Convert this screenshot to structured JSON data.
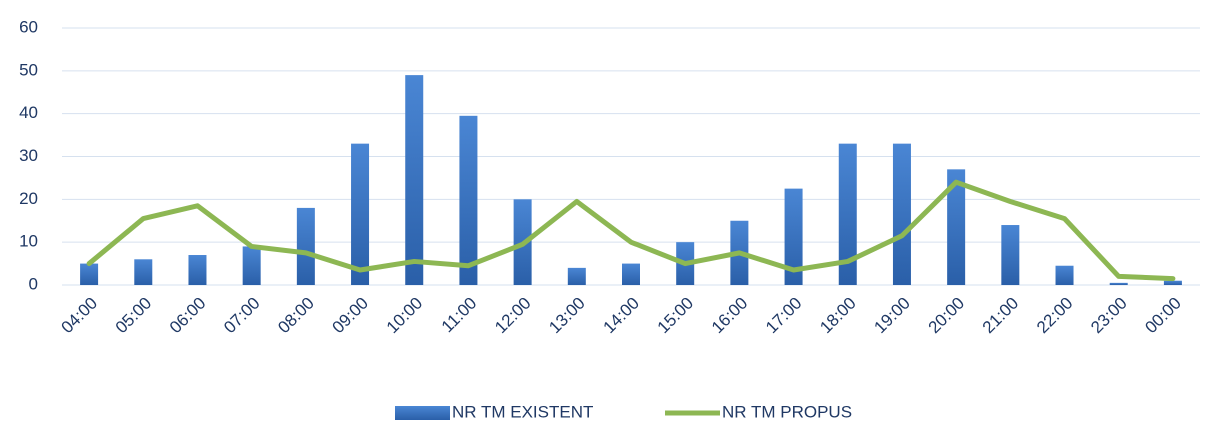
{
  "chart_data": {
    "type": "bar_line",
    "categories": [
      "04:00",
      "05:00",
      "06:00",
      "07:00",
      "08:00",
      "09:00",
      "10:00",
      "11:00",
      "12:00",
      "13:00",
      "14:00",
      "15:00",
      "16:00",
      "17:00",
      "18:00",
      "19:00",
      "20:00",
      "21:00",
      "22:00",
      "23:00",
      "00:00"
    ],
    "series": [
      {
        "name": "NR TM EXISTENT",
        "type": "bar",
        "color": "#3a78c8",
        "values": [
          5,
          6,
          7,
          9,
          18,
          33,
          49,
          39.5,
          20,
          4,
          5,
          10,
          15,
          22.5,
          33,
          33,
          27,
          14,
          4.5,
          0.5,
          1
        ]
      },
      {
        "name": "NR TM PROPUS",
        "type": "line",
        "color": "#8db753",
        "values": [
          5,
          15.5,
          18.5,
          9,
          7.5,
          3.5,
          5.5,
          4.5,
          9.5,
          19.5,
          10,
          5,
          7.5,
          3.5,
          5.5,
          11.5,
          24,
          19.5,
          15.5,
          2,
          1.5
        ]
      }
    ],
    "ylim": [
      0,
      60
    ],
    "yticks": [
      0,
      10,
      20,
      30,
      40,
      50,
      60
    ],
    "grid": true,
    "legend": "bottom"
  }
}
